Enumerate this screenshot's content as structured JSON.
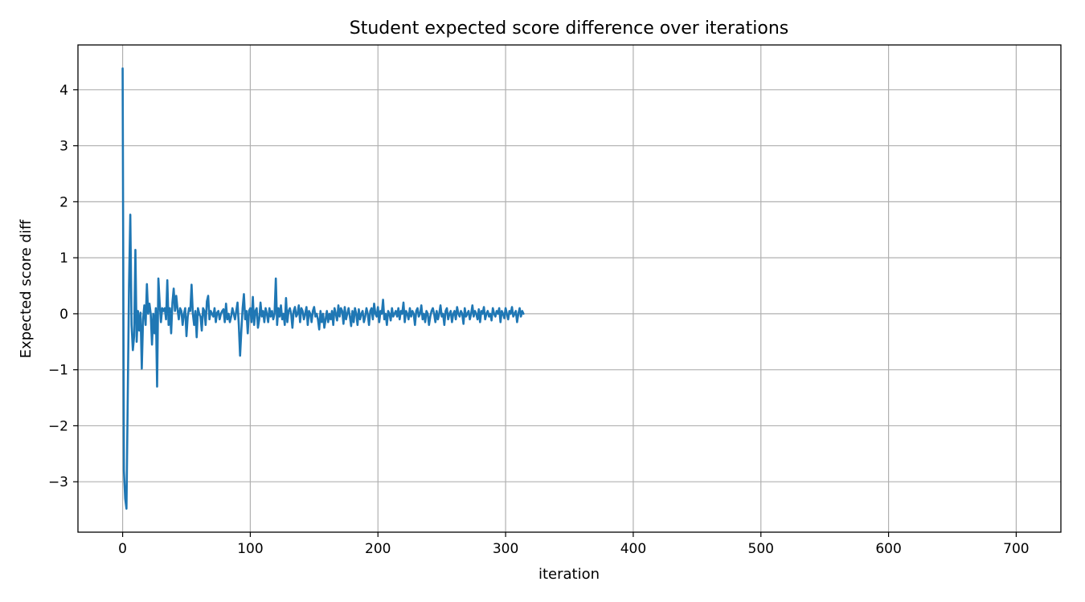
{
  "chart_data": {
    "type": "line",
    "title": "Student expected score difference over iterations",
    "xlabel": "iteration",
    "ylabel": "Expected score diff",
    "xlim": [
      -35,
      735
    ],
    "ylim": [
      -3.9,
      4.8
    ],
    "xticks": [
      0,
      100,
      200,
      300,
      400,
      500,
      600,
      700
    ],
    "yticks": [
      -3,
      -2,
      -1,
      0,
      1,
      2,
      3,
      4
    ],
    "grid": true,
    "legend": "none",
    "series": [
      {
        "color": "#1f77b4",
        "x_start": 0,
        "x_step": 1,
        "values": [
          4.38,
          -2.8,
          -3.3,
          -3.48,
          -1.5,
          0.5,
          1.77,
          -0.2,
          -0.65,
          -0.4,
          1.14,
          -0.5,
          0.05,
          -0.3,
          0.02,
          -0.98,
          -0.1,
          0.15,
          -0.2,
          0.53,
          0.0,
          0.18,
          0.0,
          -0.55,
          0.0,
          -0.35,
          0.1,
          -1.3,
          0.63,
          0.2,
          -0.15,
          0.1,
          0.05,
          0.1,
          -0.1,
          0.6,
          -0.2,
          0.1,
          -0.35,
          0.2,
          0.45,
          0.05,
          0.32,
          0.08,
          -0.1,
          0.1,
          0.05,
          -0.2,
          0.0,
          0.1,
          -0.4,
          -0.05,
          0.1,
          0.05,
          0.52,
          0.0,
          -0.2,
          0.05,
          -0.42,
          0.1,
          0.0,
          -0.05,
          -0.3,
          0.1,
          0.05,
          -0.2,
          0.22,
          0.32,
          -0.1,
          0.05,
          0.0,
          -0.05,
          0.1,
          -0.15,
          0.02,
          0.05,
          -0.1,
          0.0,
          0.05,
          0.08,
          -0.15,
          0.18,
          -0.1,
          0.0,
          -0.15,
          -0.05,
          0.1,
          0.0,
          -0.1,
          0.05,
          0.2,
          -0.2,
          -0.75,
          -0.3,
          0.1,
          0.35,
          -0.1,
          0.05,
          -0.35,
          0.05,
          0.1,
          -0.15,
          0.3,
          -0.2,
          0.05,
          0.1,
          -0.25,
          -0.1,
          0.2,
          -0.05,
          0.05,
          -0.15,
          0.1,
          0.0,
          -0.15,
          0.1,
          -0.05,
          0.05,
          -0.1,
          0.0,
          0.63,
          -0.2,
          0.1,
          -0.05,
          0.15,
          -0.1,
          0.0,
          -0.2,
          0.28,
          -0.15,
          0.05,
          0.1,
          0.0,
          -0.25,
          0.05,
          0.12,
          -0.05,
          0.0,
          0.15,
          -0.15,
          0.1,
          0.05,
          -0.1,
          0.0,
          0.12,
          -0.2,
          0.05,
          0.0,
          -0.15,
          0.05,
          0.12,
          -0.05,
          0.0,
          -0.1,
          -0.28,
          0.05,
          -0.15,
          0.0,
          -0.25,
          -0.1,
          0.05,
          -0.15,
          0.0,
          -0.1,
          0.05,
          -0.2,
          0.1,
          0.0,
          -0.12,
          0.15,
          -0.05,
          0.1,
          0.05,
          -0.18,
          0.12,
          -0.1,
          0.0,
          0.1,
          -0.05,
          -0.22,
          0.05,
          -0.15,
          0.1,
          0.0,
          -0.2,
          0.08,
          -0.1,
          0.0,
          0.05,
          -0.15,
          -0.05,
          0.1,
          0.0,
          -0.2,
          0.05,
          0.1,
          -0.1,
          0.18,
          0.0,
          -0.05,
          0.12,
          -0.15,
          0.05,
          0.0,
          0.25,
          -0.1,
          0.0,
          -0.2,
          0.05,
          0.0,
          -0.12,
          0.1,
          -0.05,
          0.0,
          0.05,
          -0.05,
          0.1,
          -0.1,
          0.05,
          0.0,
          0.2,
          -0.15,
          0.05,
          0.0,
          -0.1,
          0.1,
          -0.05,
          0.05,
          0.0,
          -0.2,
          0.05,
          0.1,
          -0.05,
          0.0,
          0.15,
          -0.1,
          0.0,
          -0.15,
          0.05,
          0.0,
          -0.2,
          -0.05,
          0.05,
          0.1,
          0.0,
          -0.15,
          0.05,
          -0.1,
          0.0,
          0.15,
          -0.05,
          0.0,
          -0.2,
          0.05,
          0.1,
          -0.1,
          0.0,
          0.05,
          -0.15,
          0.0,
          0.05,
          -0.1,
          0.12,
          0.0,
          -0.05,
          0.05,
          0.0,
          -0.18,
          0.1,
          -0.05,
          0.0,
          0.05,
          -0.1,
          0.0,
          0.15,
          -0.05,
          0.05,
          0.0,
          -0.1,
          0.08,
          -0.15,
          0.05,
          0.0,
          0.12,
          -0.1,
          0.0,
          0.05,
          -0.05,
          0.0,
          -0.12,
          0.1,
          0.0,
          -0.05,
          0.05,
          0.0,
          0.1,
          -0.15,
          0.05,
          0.0,
          -0.08,
          0.1,
          0.0,
          -0.1,
          0.05,
          0.0,
          0.12,
          -0.05,
          0.0,
          0.05,
          -0.15,
          0.0,
          0.1,
          -0.05,
          0.05,
          0.0
        ]
      }
    ]
  }
}
